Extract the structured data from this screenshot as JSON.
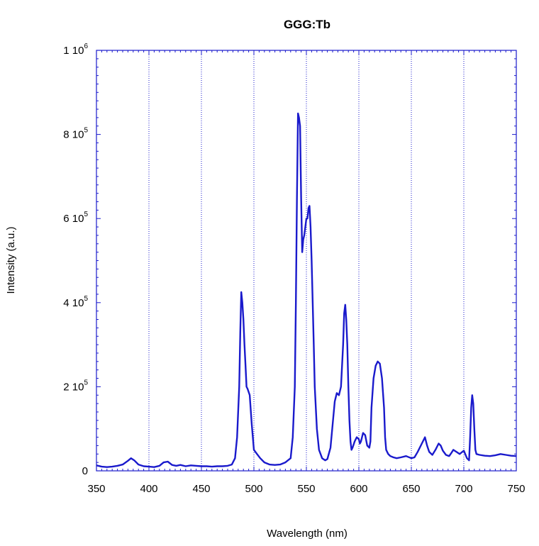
{
  "chart_data": {
    "type": "line",
    "title": "GGG:Tb",
    "xlabel": "Wavelength (nm)",
    "ylabel": "Intensity (a.u.)",
    "xlim": [
      350,
      750
    ],
    "ylim": [
      0,
      1000000
    ],
    "x_ticks": [
      350,
      400,
      450,
      500,
      550,
      600,
      650,
      700,
      750
    ],
    "x_tick_labels": [
      "350",
      "400",
      "450",
      "500",
      "550",
      "600",
      "650",
      "700",
      "750"
    ],
    "y_ticks": [
      0,
      200000,
      400000,
      600000,
      800000,
      1000000
    ],
    "y_tick_labels": [
      {
        "mant": "0",
        "exp": ""
      },
      {
        "mant": "2 10",
        "exp": "5"
      },
      {
        "mant": "4 10",
        "exp": "5"
      },
      {
        "mant": "6 10",
        "exp": "5"
      },
      {
        "mant": "8 10",
        "exp": "5"
      },
      {
        "mant": "1 10",
        "exp": "6"
      }
    ],
    "vertical_gridlines": [
      400,
      450,
      500,
      550,
      600,
      650,
      700
    ],
    "grid": "vertical dotted",
    "series": [
      {
        "color": "#1a1acc",
        "x": [
          350,
          355,
          360,
          365,
          370,
          375,
          380,
          383,
          386,
          390,
          395,
          400,
          405,
          410,
          414,
          418,
          422,
          426,
          430,
          435,
          440,
          445,
          450,
          455,
          460,
          465,
          470,
          475,
          479,
          482,
          484,
          486,
          487,
          488,
          489,
          490,
          491,
          492,
          493,
          494,
          496,
          498,
          500,
          503,
          506,
          510,
          515,
          520,
          525,
          530,
          535,
          537,
          539,
          540,
          541,
          542,
          543,
          544,
          545,
          546,
          547,
          548,
          549,
          550,
          551,
          552,
          553,
          554,
          555,
          556,
          557,
          558,
          560,
          562,
          565,
          568,
          570,
          573,
          575,
          577,
          579,
          581,
          583,
          585,
          586,
          587,
          588,
          589,
          590,
          591,
          592,
          593,
          594,
          596,
          598,
          600,
          601,
          602,
          604,
          606,
          608,
          610,
          611,
          612,
          614,
          616,
          618,
          620,
          622,
          624,
          625,
          626,
          628,
          630,
          633,
          636,
          640,
          645,
          650,
          653,
          656,
          660,
          663,
          665,
          667,
          670,
          673,
          676,
          678,
          680,
          683,
          686,
          688,
          690,
          693,
          696,
          700,
          703,
          705,
          706,
          707,
          708,
          709,
          710,
          711,
          712,
          715,
          720,
          725,
          730,
          735,
          740,
          745,
          750
        ],
        "y": [
          13000,
          10000,
          9000,
          10000,
          12000,
          15000,
          24000,
          30000,
          25000,
          15000,
          11000,
          10000,
          9000,
          12000,
          20000,
          22000,
          14000,
          12000,
          14000,
          11000,
          13000,
          12000,
          11000,
          11000,
          10000,
          11000,
          11000,
          12000,
          15000,
          30000,
          80000,
          200000,
          330000,
          425000,
          400000,
          360000,
          300000,
          250000,
          200000,
          195000,
          180000,
          110000,
          50000,
          40000,
          30000,
          20000,
          15000,
          14000,
          15000,
          20000,
          30000,
          80000,
          200000,
          400000,
          650000,
          850000,
          840000,
          820000,
          650000,
          520000,
          550000,
          560000,
          580000,
          600000,
          600000,
          625000,
          630000,
          580000,
          500000,
          400000,
          300000,
          200000,
          100000,
          50000,
          30000,
          25000,
          28000,
          55000,
          110000,
          165000,
          185000,
          180000,
          200000,
          300000,
          375000,
          395000,
          360000,
          300000,
          200000,
          120000,
          70000,
          50000,
          55000,
          70000,
          80000,
          75000,
          65000,
          70000,
          90000,
          85000,
          60000,
          55000,
          70000,
          150000,
          220000,
          250000,
          260000,
          255000,
          220000,
          150000,
          80000,
          50000,
          40000,
          35000,
          32000,
          30000,
          32000,
          35000,
          30000,
          32000,
          45000,
          65000,
          80000,
          60000,
          45000,
          38000,
          50000,
          65000,
          60000,
          48000,
          38000,
          35000,
          42000,
          50000,
          45000,
          40000,
          48000,
          30000,
          25000,
          80000,
          150000,
          180000,
          160000,
          100000,
          50000,
          40000,
          38000,
          36000,
          35000,
          37000,
          40000,
          38000,
          36000,
          35000
        ]
      }
    ]
  }
}
